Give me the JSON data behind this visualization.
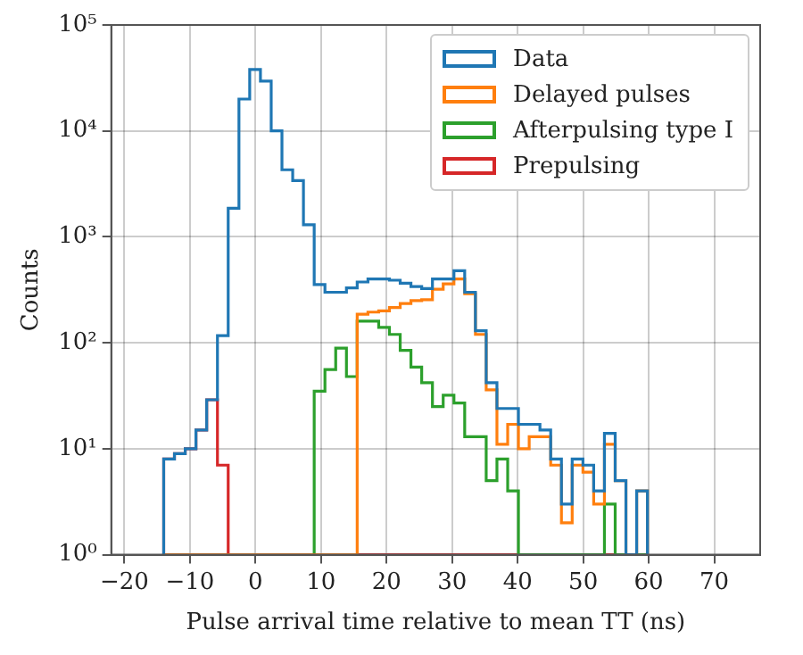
{
  "chart_data": {
    "type": "histogram",
    "xlabel": "Pulse arrival time relative to mean TT (ns)",
    "ylabel": "Counts",
    "bins": [
      -14.0,
      -12.36,
      -10.72,
      -9.08,
      -7.44,
      -5.8,
      -4.16,
      -2.52,
      -0.88,
      0.76,
      2.4,
      4.04,
      5.68,
      7.32,
      8.96,
      10.6,
      12.24,
      13.88,
      15.52,
      17.16,
      18.8,
      20.44,
      22.08,
      23.72,
      25.36,
      27.0,
      28.64,
      30.28,
      31.92,
      33.56,
      35.2,
      36.84,
      38.48,
      40.12,
      41.76,
      43.4,
      45.04,
      46.68,
      48.32,
      49.96,
      51.6,
      53.24,
      54.88,
      56.52,
      58.16,
      59.8
    ],
    "series": [
      {
        "name": "Data",
        "color": "#1f77b4",
        "values": [
          8,
          9,
          10,
          15,
          29,
          117,
          1860,
          20000,
          38000,
          29500,
          10000,
          4300,
          3400,
          1300,
          355,
          300,
          300,
          330,
          375,
          400,
          400,
          390,
          365,
          340,
          325,
          400,
          400,
          480,
          300,
          130,
          42,
          24,
          24,
          17,
          17,
          15,
          8,
          3,
          8,
          7,
          4,
          14,
          5,
          1,
          4
        ]
      },
      {
        "name": "Delayed pulses",
        "color": "#ff7f0e",
        "values": [
          null,
          null,
          null,
          null,
          null,
          null,
          null,
          null,
          null,
          null,
          null,
          null,
          null,
          null,
          null,
          null,
          null,
          null,
          186,
          195,
          200,
          215,
          235,
          250,
          255,
          320,
          360,
          400,
          290,
          120,
          36,
          11,
          17,
          10,
          13,
          13,
          7,
          2,
          7,
          6,
          3,
          11,
          5,
          1,
          4
        ]
      },
      {
        "name": "Afterpulsing type I",
        "color": "#2ca02c",
        "values": [
          null,
          null,
          null,
          null,
          null,
          null,
          null,
          null,
          null,
          null,
          null,
          null,
          null,
          null,
          35,
          56,
          89,
          48,
          160,
          160,
          140,
          120,
          85,
          59,
          42,
          25,
          32,
          27,
          13,
          13,
          5,
          8,
          4,
          null,
          null,
          null,
          null,
          null,
          null,
          null,
          null,
          3,
          null,
          null,
          null
        ]
      },
      {
        "name": "Prepulsing",
        "color": "#d62728",
        "values": [
          8,
          9,
          10,
          15,
          29,
          7,
          null,
          null,
          null,
          null,
          null,
          null,
          null,
          null,
          null,
          null,
          null,
          null,
          null,
          null,
          null,
          null,
          null,
          null,
          null,
          null,
          null,
          null,
          null,
          null,
          null,
          null,
          null,
          null,
          null,
          null,
          null,
          null,
          null,
          null,
          null,
          null,
          null,
          null,
          null
        ]
      }
    ],
    "xlim": [
      -22,
      77
    ],
    "xticks": [
      {
        "value": -20,
        "label": "−20"
      },
      {
        "value": -10,
        "label": "−10"
      },
      0,
      10,
      20,
      30,
      40,
      50,
      60,
      70
    ],
    "ylim": [
      1,
      100000
    ],
    "yticks": [
      {
        "value": 1,
        "label": "10⁰"
      },
      {
        "value": 10,
        "label": "10¹"
      },
      {
        "value": 100,
        "label": "10²"
      },
      {
        "value": 1000,
        "label": "10³"
      },
      {
        "value": 10000,
        "label": "10⁴"
      },
      {
        "value": 100000,
        "label": "10⁵"
      }
    ],
    "log": "y",
    "grid": true,
    "legend": "top right"
  }
}
